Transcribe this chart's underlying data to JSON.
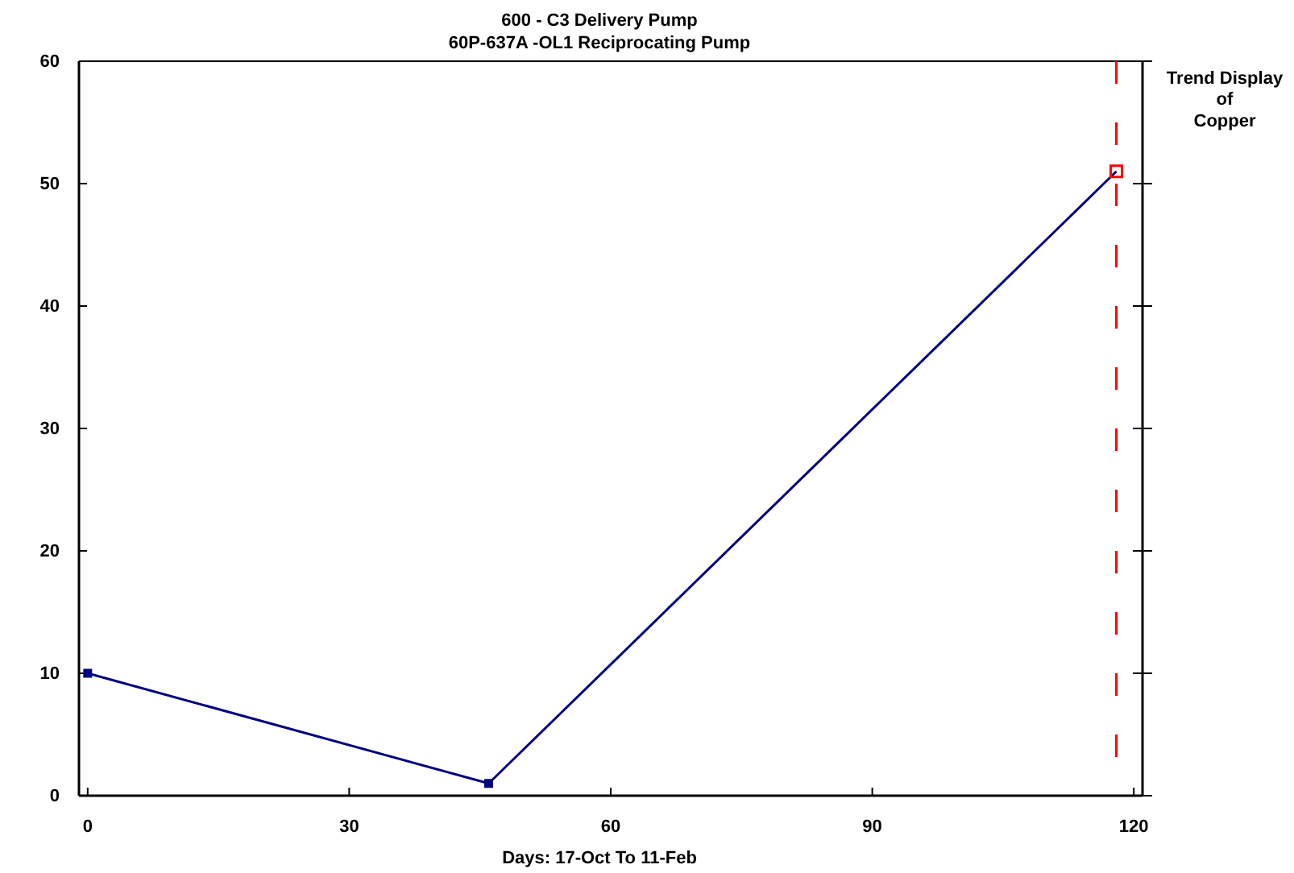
{
  "chart_data": {
    "type": "line",
    "title": "600  - C3 Delivery Pump",
    "subtitle": "60P-637A  -OL1    Reciprocating Pump",
    "xlabel": "Days: 17-Oct To 11-Feb",
    "annotations": [
      "Trend Display\nof\nCopper"
    ],
    "x": [
      0,
      46,
      118
    ],
    "series": [
      {
        "color": "#000080",
        "colors": [
          "#000080",
          "#000080",
          "#ff0000"
        ],
        "values": [
          10,
          1,
          51
        ]
      }
    ],
    "xlim": [
      -1,
      121
    ],
    "xticks": [
      0,
      30,
      60,
      90,
      120
    ],
    "ylim": [
      0,
      60
    ],
    "yticks": [
      0,
      10,
      20,
      30,
      40,
      50,
      60
    ],
    "grid": false,
    "marker": "square",
    "line_style": "solid",
    "ref_lines": [
      {
        "axis": "x",
        "value": 118,
        "color": "#ff0000",
        "line_style": "dashed"
      }
    ]
  }
}
